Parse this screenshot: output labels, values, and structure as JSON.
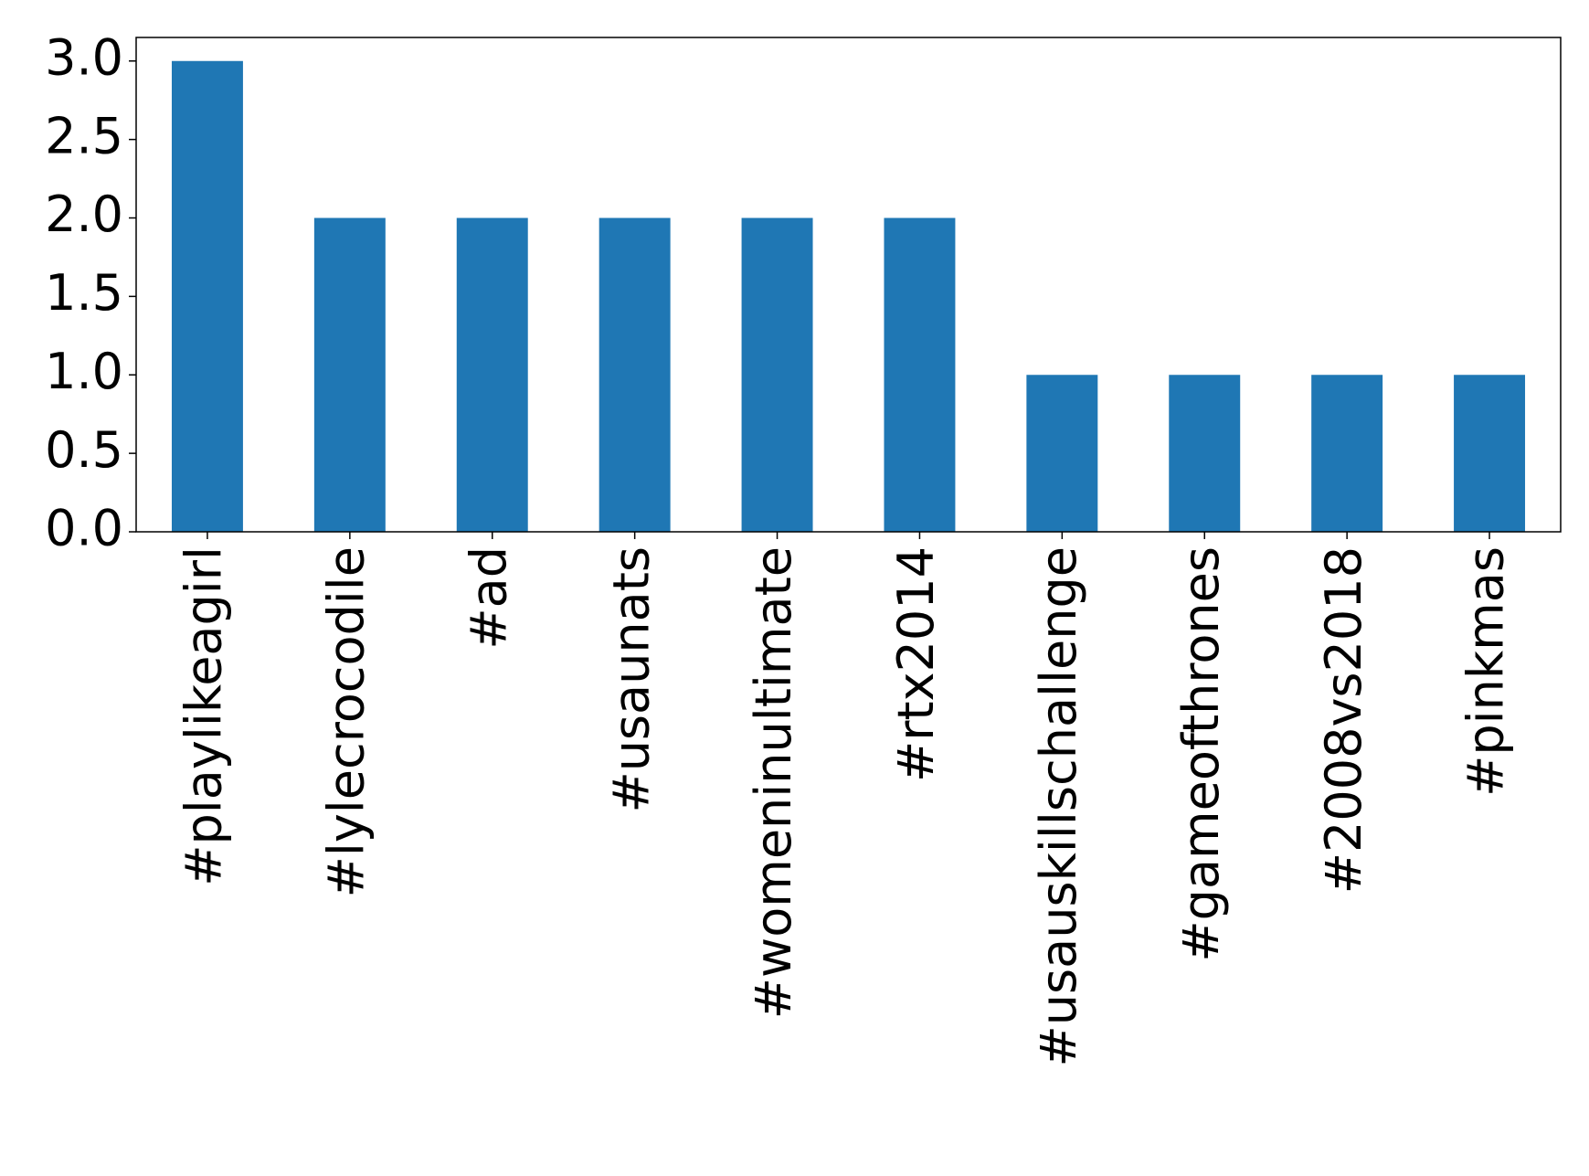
{
  "chart_data": {
    "type": "bar",
    "categories": [
      "#playlikeagirl",
      "#lylecrocodile",
      "#ad",
      "#usaunats",
      "#womeninultimate",
      "#rtx2014",
      "#usauskillschallenge",
      "#gameofthrones",
      "#2008vs2018",
      "#pinkmas"
    ],
    "values": [
      3,
      2,
      2,
      2,
      2,
      2,
      1,
      1,
      1,
      1
    ],
    "color": "#1f77b4",
    "ylim": [
      0,
      3.15
    ],
    "yticks": [
      {
        "value": 0,
        "label": "0.0"
      },
      {
        "value": 0.5,
        "label": "0.5"
      },
      {
        "value": 1,
        "label": "1.0"
      },
      {
        "value": 1.5,
        "label": "1.5"
      },
      {
        "value": 2,
        "label": "2.0"
      },
      {
        "value": 2.5,
        "label": "2.5"
      },
      {
        "value": 3,
        "label": "3.0"
      }
    ],
    "grid": false
  }
}
